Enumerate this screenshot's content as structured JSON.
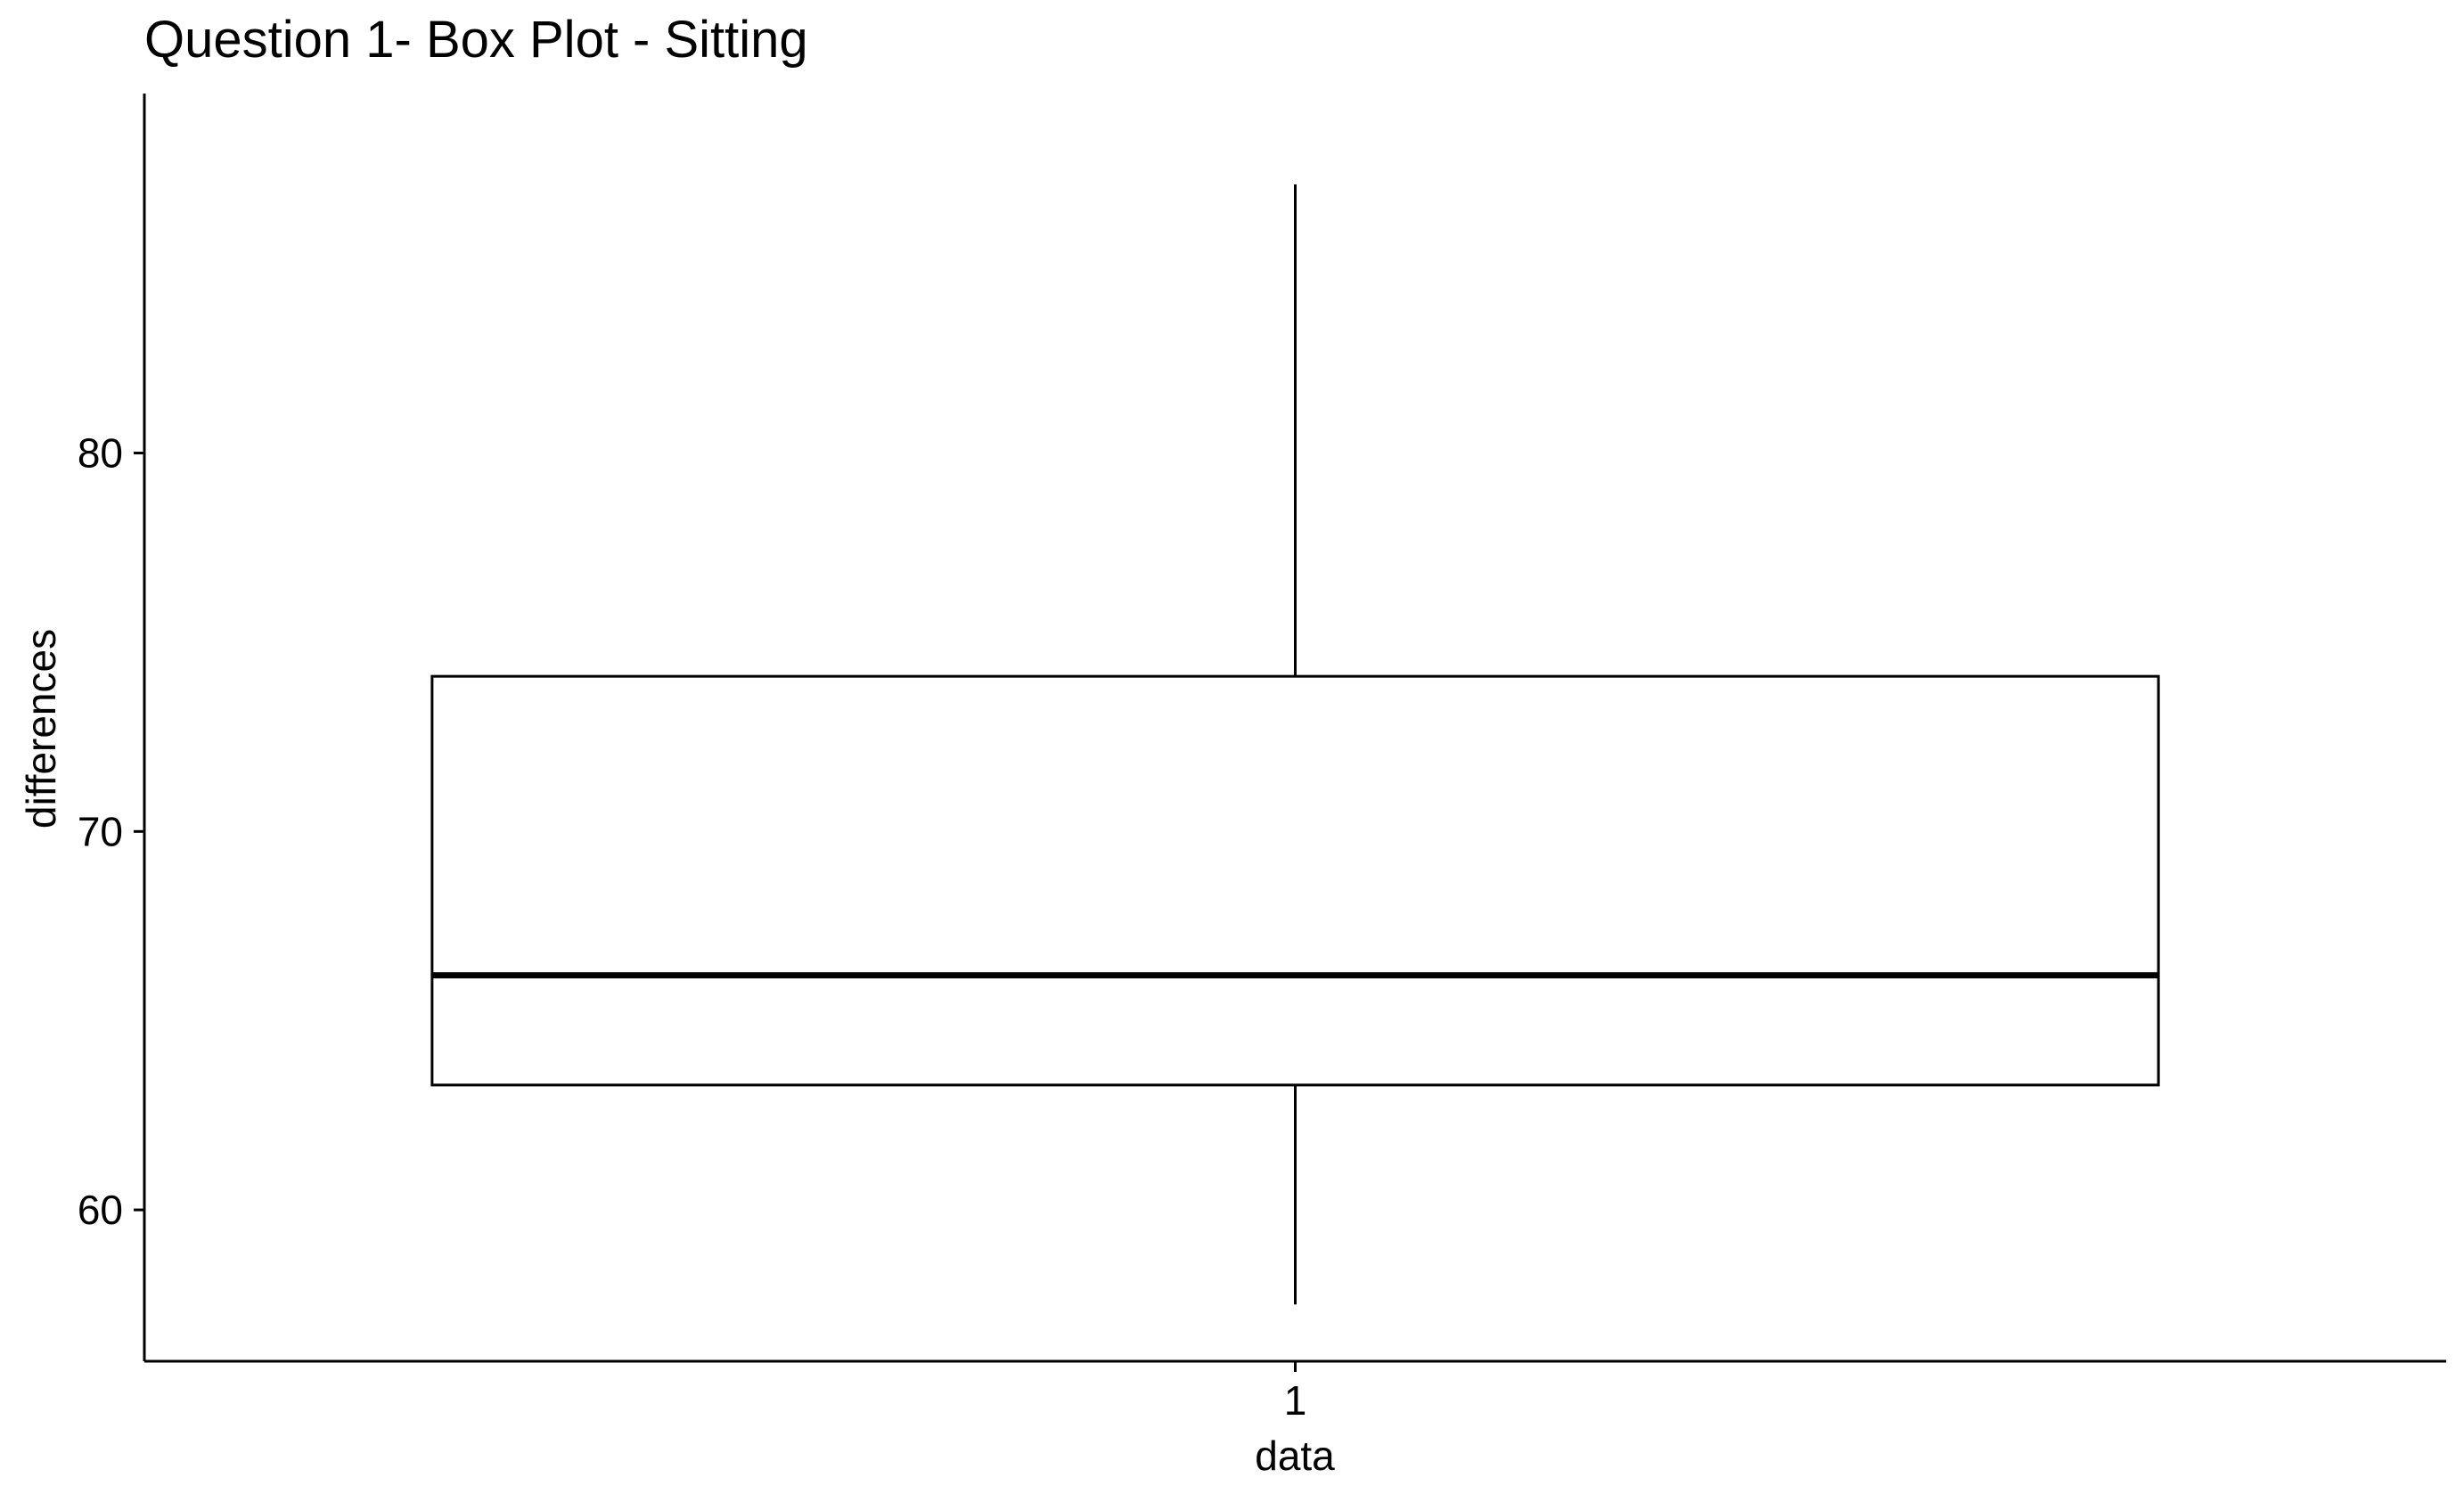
{
  "chart_data": {
    "type": "box",
    "title": "Question 1- Box Plot - Sitting",
    "xlabel": "data",
    "ylabel": "differences",
    "categories": [
      "1"
    ],
    "boxes": [
      {
        "category": "1",
        "whisker_low": 57.5,
        "q1": 63.3,
        "median": 66.2,
        "q3": 74.1,
        "whisker_high": 87.1
      }
    ],
    "yticks": [
      60,
      70,
      80
    ],
    "ytick_labels": [
      "60",
      "70",
      "80"
    ],
    "ylim": [
      56,
      89.5
    ],
    "grid": false,
    "legend": "none"
  },
  "colors": {
    "background": "#ffffff",
    "ink": "#000000",
    "box_fill": "#ffffff"
  }
}
